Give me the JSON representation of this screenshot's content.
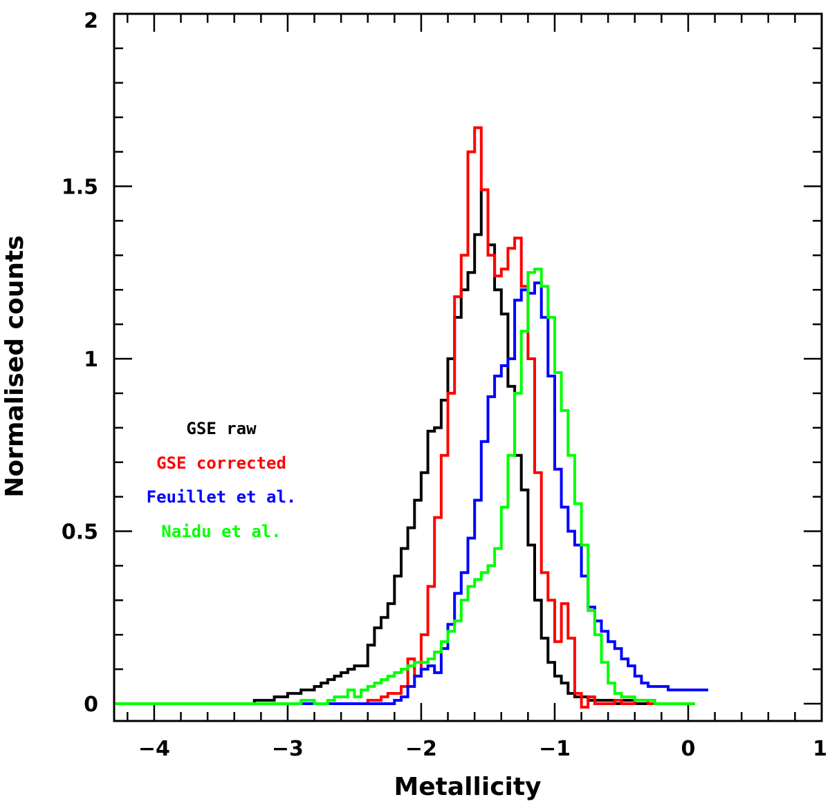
{
  "chart_data": {
    "type": "line",
    "style": "step histogram",
    "title": "",
    "xlabel": "Metallicity",
    "ylabel": "Normalised counts",
    "xlim": [
      -4.3,
      1.0
    ],
    "ylim": [
      -0.05,
      2.0
    ],
    "xticks": [
      {
        "v": -4,
        "label": "−4"
      },
      {
        "v": -3,
        "label": "−3"
      },
      {
        "v": -2,
        "label": "−2"
      },
      {
        "v": -1,
        "label": "−1"
      },
      {
        "v": 0,
        "label": "0"
      },
      {
        "v": 1,
        "label": "1"
      }
    ],
    "yticks": [
      {
        "v": 0,
        "label": "0"
      },
      {
        "v": 0.5,
        "label": "0.5"
      },
      {
        "v": 1,
        "label": "1"
      },
      {
        "v": 1.5,
        "label": "1.5"
      },
      {
        "v": 2,
        "label": "2"
      }
    ],
    "x_minor_step": 0.2,
    "y_minor_step": 0.1,
    "legend_position": "middle-left",
    "series": [
      {
        "name": "GSE raw",
        "color": "#000000",
        "x": [
          -4.3,
          -3.25,
          -3.2,
          -3.15,
          -3.1,
          -3.05,
          -3.0,
          -2.95,
          -2.9,
          -2.85,
          -2.8,
          -2.75,
          -2.7,
          -2.65,
          -2.6,
          -2.55,
          -2.5,
          -2.45,
          -2.4,
          -2.35,
          -2.3,
          -2.25,
          -2.2,
          -2.15,
          -2.1,
          -2.05,
          -2.0,
          -1.95,
          -1.9,
          -1.85,
          -1.8,
          -1.75,
          -1.7,
          -1.65,
          -1.6,
          -1.55,
          -1.5,
          -1.45,
          -1.4,
          -1.35,
          -1.3,
          -1.25,
          -1.2,
          -1.15,
          -1.1,
          -1.05,
          -1.0,
          -0.95,
          -0.9,
          -0.85,
          -0.8,
          -0.75,
          -0.7,
          -0.65,
          -0.6,
          -0.55,
          -0.5,
          -0.45,
          -0.4,
          -0.35,
          -0.3,
          -0.25,
          -0.2,
          -0.15,
          -0.1,
          -0.05,
          0.0
        ],
        "y": [
          0.0,
          0.01,
          0.01,
          0.01,
          0.02,
          0.02,
          0.03,
          0.03,
          0.04,
          0.04,
          0.05,
          0.06,
          0.07,
          0.08,
          0.09,
          0.1,
          0.11,
          0.11,
          0.17,
          0.22,
          0.25,
          0.29,
          0.37,
          0.45,
          0.51,
          0.59,
          0.67,
          0.79,
          0.8,
          0.88,
          1.0,
          1.12,
          1.2,
          1.25,
          1.36,
          1.49,
          1.33,
          1.2,
          1.13,
          0.92,
          0.72,
          0.62,
          0.46,
          0.3,
          0.19,
          0.12,
          0.08,
          0.06,
          0.03,
          0.02,
          0.02,
          0.01,
          0.01,
          0.01,
          0.01,
          0.0,
          0.01,
          0.01,
          0.0,
          0.0,
          0.0,
          0.0,
          0.0,
          0.0,
          0.0,
          0.0,
          0.0
        ]
      },
      {
        "name": "GSE corrected",
        "color": "#ff0000",
        "x": [
          -4.3,
          -2.5,
          -2.45,
          -2.4,
          -2.35,
          -2.3,
          -2.25,
          -2.2,
          -2.15,
          -2.1,
          -2.05,
          -2.0,
          -1.95,
          -1.9,
          -1.85,
          -1.8,
          -1.75,
          -1.7,
          -1.65,
          -1.6,
          -1.55,
          -1.5,
          -1.45,
          -1.4,
          -1.35,
          -1.3,
          -1.25,
          -1.2,
          -1.15,
          -1.1,
          -1.05,
          -1.0,
          -0.95,
          -0.9,
          -0.85,
          -0.8,
          -0.75,
          -0.7,
          -0.65,
          -0.6,
          -0.55,
          -0.5,
          -0.45,
          -0.4,
          -0.35,
          -0.3,
          -0.25,
          -0.2,
          -0.15,
          -0.1,
          -0.05,
          0.0
        ],
        "y": [
          0.0,
          0.0,
          0.0,
          0.01,
          0.01,
          0.02,
          0.03,
          0.03,
          0.05,
          0.13,
          0.08,
          0.2,
          0.34,
          0.54,
          0.72,
          0.9,
          1.18,
          1.3,
          1.6,
          1.67,
          1.49,
          1.3,
          1.24,
          1.26,
          1.32,
          1.35,
          1.21,
          1.0,
          0.67,
          0.38,
          0.3,
          0.18,
          0.29,
          0.19,
          0.03,
          -0.01,
          0.02,
          0.0,
          0.0,
          0.0,
          0.01,
          0.0,
          0.0,
          0.01,
          0.01,
          0.0,
          0.0,
          0.0,
          0.0,
          0.0,
          0.0,
          0.0
        ]
      },
      {
        "name": "Feuillet et al.",
        "color": "#0000ff",
        "x": [
          -4.3,
          -2.3,
          -2.25,
          -2.2,
          -2.15,
          -2.1,
          -2.05,
          -2.0,
          -1.95,
          -1.9,
          -1.85,
          -1.8,
          -1.75,
          -1.7,
          -1.65,
          -1.6,
          -1.55,
          -1.5,
          -1.45,
          -1.4,
          -1.35,
          -1.3,
          -1.25,
          -1.2,
          -1.15,
          -1.1,
          -1.05,
          -1.0,
          -0.95,
          -0.9,
          -0.85,
          -0.8,
          -0.75,
          -0.7,
          -0.65,
          -0.6,
          -0.55,
          -0.5,
          -0.45,
          -0.4,
          -0.35,
          -0.3,
          -0.25,
          -0.2,
          -0.15,
          -0.1,
          -0.05,
          0.0,
          0.05,
          0.1
        ],
        "y": [
          0.0,
          0.0,
          0.0,
          0.01,
          0.02,
          0.05,
          0.08,
          0.1,
          0.11,
          0.09,
          0.16,
          0.23,
          0.32,
          0.38,
          0.48,
          0.59,
          0.76,
          0.89,
          0.95,
          0.98,
          1.0,
          1.17,
          1.2,
          1.19,
          1.22,
          1.12,
          0.95,
          0.68,
          0.57,
          0.5,
          0.46,
          0.37,
          0.28,
          0.24,
          0.21,
          0.18,
          0.16,
          0.13,
          0.11,
          0.08,
          0.06,
          0.05,
          0.05,
          0.05,
          0.04,
          0.04,
          0.04,
          0.04,
          0.04,
          0.04
        ]
      },
      {
        "name": "Naidu et al.",
        "color": "#00ff00",
        "x": [
          -4.3,
          -2.9,
          -2.85,
          -2.8,
          -2.75,
          -2.7,
          -2.65,
          -2.6,
          -2.55,
          -2.5,
          -2.45,
          -2.4,
          -2.35,
          -2.3,
          -2.25,
          -2.2,
          -2.15,
          -2.1,
          -2.05,
          -2.0,
          -1.95,
          -1.9,
          -1.85,
          -1.8,
          -1.75,
          -1.7,
          -1.65,
          -1.6,
          -1.55,
          -1.5,
          -1.45,
          -1.4,
          -1.35,
          -1.3,
          -1.25,
          -1.2,
          -1.15,
          -1.1,
          -1.05,
          -1.0,
          -0.95,
          -0.9,
          -0.85,
          -0.8,
          -0.75,
          -0.7,
          -0.65,
          -0.6,
          -0.55,
          -0.5,
          -0.45,
          -0.4,
          -0.35,
          -0.3,
          -0.25,
          -0.2,
          -0.15,
          -0.1,
          -0.05,
          0.0
        ],
        "y": [
          0.0,
          0.01,
          0.01,
          0.0,
          0.0,
          0.01,
          0.02,
          0.02,
          0.04,
          0.02,
          0.04,
          0.05,
          0.06,
          0.07,
          0.08,
          0.09,
          0.1,
          0.11,
          0.12,
          0.12,
          0.13,
          0.15,
          0.18,
          0.21,
          0.24,
          0.3,
          0.34,
          0.36,
          0.38,
          0.4,
          0.45,
          0.57,
          0.72,
          0.9,
          1.08,
          1.25,
          1.26,
          1.21,
          1.12,
          0.96,
          0.85,
          0.72,
          0.58,
          0.46,
          0.27,
          0.2,
          0.12,
          0.06,
          0.03,
          0.02,
          0.02,
          0.01,
          0.01,
          0.01,
          0.0,
          0.0,
          0.0,
          0.0,
          0.0,
          0.0
        ]
      }
    ]
  }
}
